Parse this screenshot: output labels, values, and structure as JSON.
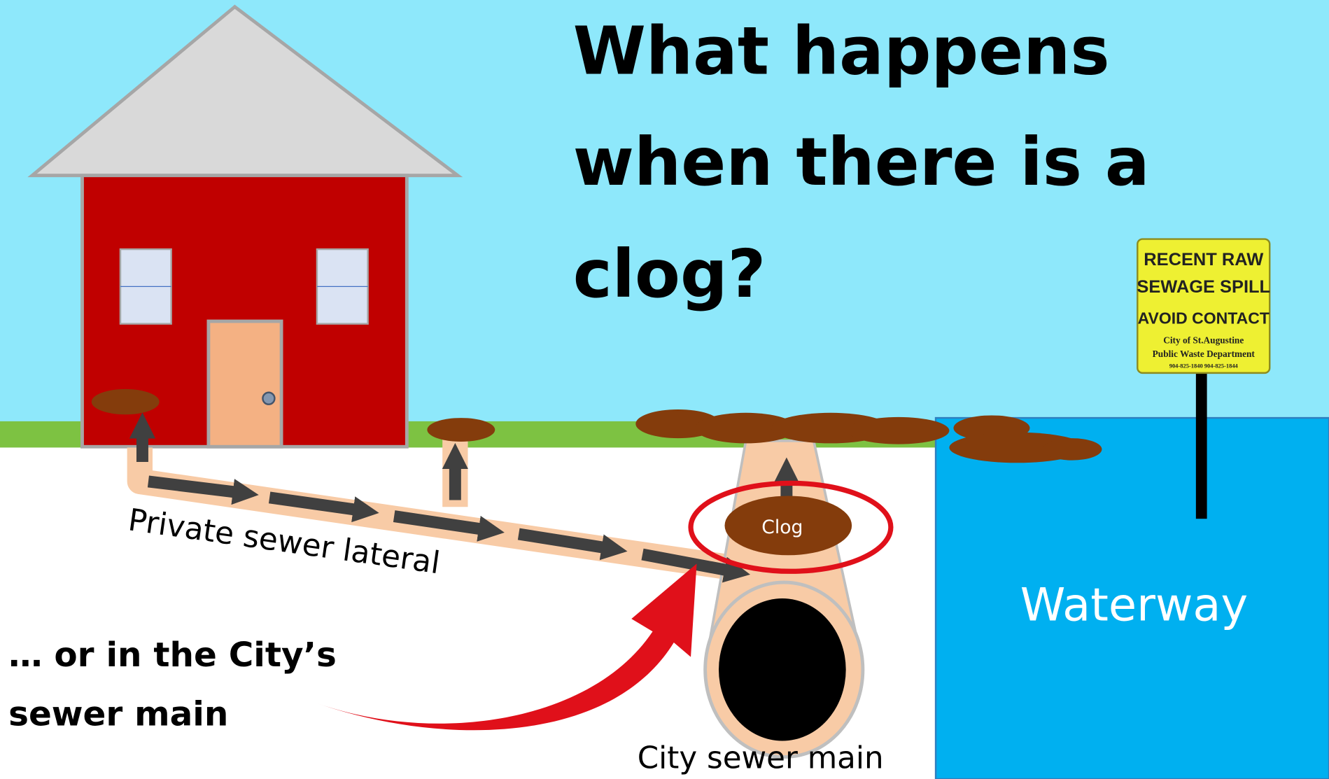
{
  "title": [
    "What happens",
    "when there is a",
    "clog?"
  ],
  "labels": {
    "lateral": "Private sewer lateral",
    "clog": "Clog",
    "city_main_note": [
      "… or in the City’s",
      "sewer main"
    ],
    "city_main": "City sewer main",
    "waterway": "Waterway"
  },
  "sign": {
    "lines": [
      "RECENT RAW",
      "SEWAGE SPILL",
      "AVOID CONTACT"
    ],
    "small": [
      "City of St.Augustine",
      "Public Waste Department",
      "904-825-1840 904-825-1844"
    ]
  }
}
